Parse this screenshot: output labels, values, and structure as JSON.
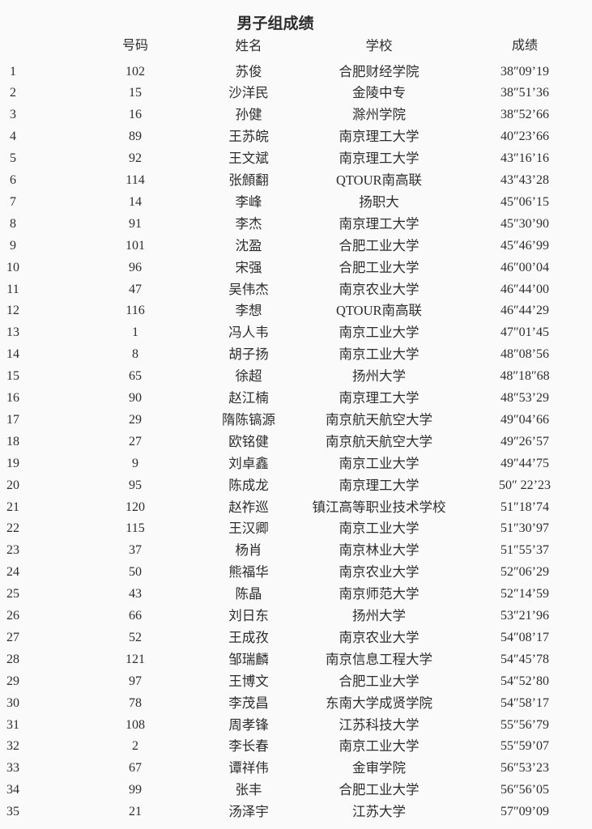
{
  "page": {
    "title": "男子组成绩",
    "background_color": "#fafafa",
    "text_color": "#2d2d2d"
  },
  "table": {
    "headers": {
      "rank": "",
      "number": "号码",
      "name": "姓名",
      "school": "学校",
      "score": "成绩"
    },
    "rows": [
      {
        "rank": "1",
        "number": "102",
        "name": "苏俊",
        "school": "合肥财经学院",
        "score": "38″09’19"
      },
      {
        "rank": "2",
        "number": "15",
        "name": "沙洋民",
        "school": "金陵中专",
        "score": "38″51’36"
      },
      {
        "rank": "3",
        "number": "16",
        "name": "孙健",
        "school": "滁州学院",
        "score": "38″52’66"
      },
      {
        "rank": "4",
        "number": "89",
        "name": "王苏皖",
        "school": "南京理工大学",
        "score": "40″23’66"
      },
      {
        "rank": "5",
        "number": "92",
        "name": "王文斌",
        "school": "南京理工大学",
        "score": "43″16’16"
      },
      {
        "rank": "6",
        "number": "114",
        "name": "张頠翻",
        "school": "QTOUR南高联",
        "score": "43″43’28"
      },
      {
        "rank": "7",
        "number": "14",
        "name": "李峰",
        "school": "扬职大",
        "score": "45″06’15"
      },
      {
        "rank": "8",
        "number": "91",
        "name": "李杰",
        "school": "南京理工大学",
        "score": "45″30’90"
      },
      {
        "rank": "9",
        "number": "101",
        "name": "沈盈",
        "school": "合肥工业大学",
        "score": "45″46’99"
      },
      {
        "rank": "10",
        "number": "96",
        "name": "宋强",
        "school": "合肥工业大学",
        "score": "46″00’04"
      },
      {
        "rank": "11",
        "number": "47",
        "name": "吴伟杰",
        "school": "南京农业大学",
        "score": "46″44’00"
      },
      {
        "rank": "12",
        "number": "116",
        "name": "李想",
        "school": "QTOUR南高联",
        "score": "46″44’29"
      },
      {
        "rank": "13",
        "number": "1",
        "name": "冯人韦",
        "school": "南京工业大学",
        "score": "47″01’45"
      },
      {
        "rank": "14",
        "number": "8",
        "name": "胡子扬",
        "school": "南京工业大学",
        "score": "48″08’56"
      },
      {
        "rank": "15",
        "number": "65",
        "name": "徐超",
        "school": "扬州大学",
        "score": "48″18″68"
      },
      {
        "rank": "16",
        "number": "90",
        "name": "赵江楠",
        "school": "南京理工大学",
        "score": "48″53’29"
      },
      {
        "rank": "17",
        "number": "29",
        "name": "隋陈镐源",
        "school": "南京航天航空大学",
        "score": "49″04’66"
      },
      {
        "rank": "18",
        "number": "27",
        "name": "欧铭健",
        "school": "南京航天航空大学",
        "score": "49″26’57"
      },
      {
        "rank": "19",
        "number": "9",
        "name": "刘卓鑫",
        "school": "南京工业大学",
        "score": "49″44’75"
      },
      {
        "rank": "20",
        "number": "95",
        "name": "陈成龙",
        "school": "南京理工大学",
        "score": "50″ 22’23"
      },
      {
        "rank": "21",
        "number": "120",
        "name": "赵祚巡",
        "school": "镇江高等职业技术学校",
        "score": "51″18’74"
      },
      {
        "rank": "22",
        "number": "115",
        "name": "王汉卿",
        "school": "南京工业大学",
        "score": "51″30’97"
      },
      {
        "rank": "23",
        "number": "37",
        "name": "杨肖",
        "school": "南京林业大学",
        "score": "51″55’37"
      },
      {
        "rank": "24",
        "number": "50",
        "name": "熊福华",
        "school": "南京农业大学",
        "score": "52″06’29"
      },
      {
        "rank": "25",
        "number": "43",
        "name": "陈晶",
        "school": "南京师范大学",
        "score": "52″14’59"
      },
      {
        "rank": "26",
        "number": "66",
        "name": "刘日东",
        "school": "扬州大学",
        "score": "53″21’96"
      },
      {
        "rank": "27",
        "number": "52",
        "name": "王成孜",
        "school": "南京农业大学",
        "score": "54″08’17"
      },
      {
        "rank": "28",
        "number": "121",
        "name": "邹瑞麟",
        "school": "南京信息工程大学",
        "score": "54″45’78"
      },
      {
        "rank": "29",
        "number": "97",
        "name": "王博文",
        "school": "合肥工业大学",
        "score": "54″52’80"
      },
      {
        "rank": "30",
        "number": "78",
        "name": "李茂昌",
        "school": "东南大学成贤学院",
        "score": "54″58’17"
      },
      {
        "rank": "31",
        "number": "108",
        "name": "周孝锋",
        "school": "江苏科技大学",
        "score": "55″56’79"
      },
      {
        "rank": "32",
        "number": "2",
        "name": "李长春",
        "school": "南京工业大学",
        "score": "55″59’07"
      },
      {
        "rank": "33",
        "number": "67",
        "name": "谭祥伟",
        "school": "金审学院",
        "score": "56″53’23"
      },
      {
        "rank": "34",
        "number": "99",
        "name": "张丰",
        "school": "合肥工业大学",
        "score": "56″56’05"
      },
      {
        "rank": "35",
        "number": "21",
        "name": "汤泽宇",
        "school": "江苏大学",
        "score": "57″09’09"
      }
    ]
  }
}
